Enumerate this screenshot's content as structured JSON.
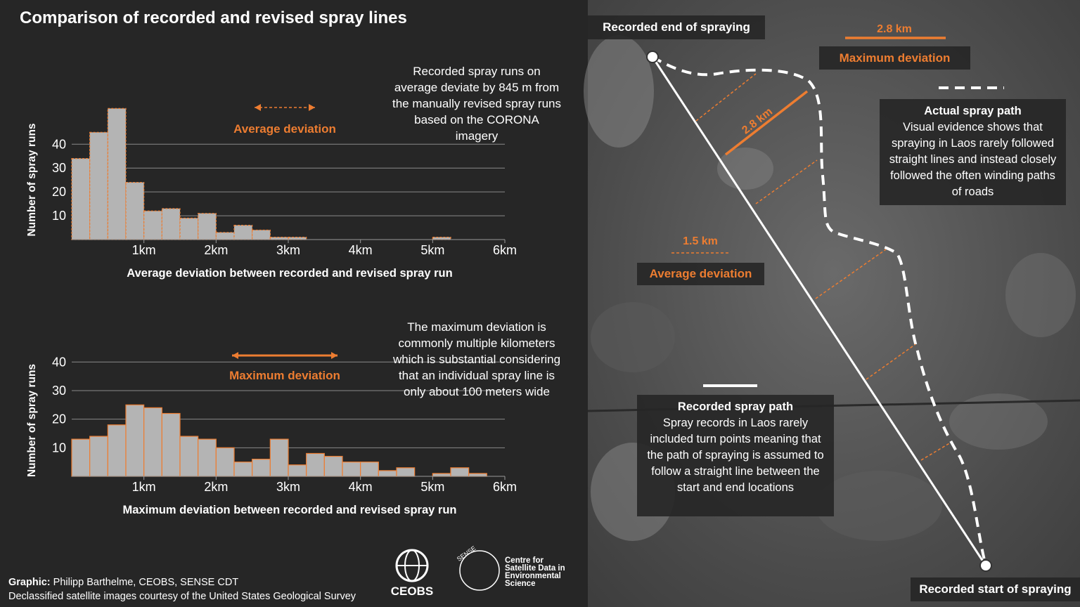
{
  "title": "Comparison of recorded and revised spray lines",
  "chart_data": [
    {
      "type": "histogram",
      "y_label": "Number of spray runs",
      "x_label": "Average deviation between recorded and revised spray run",
      "bins": [
        0,
        0.25,
        0.5,
        0.75,
        1,
        1.25,
        1.5,
        1.75,
        2,
        2.25,
        2.5,
        2.75,
        3,
        3.25,
        3.5,
        3.75,
        4,
        4.25,
        4.5,
        4.75,
        5,
        5.25,
        5.5,
        5.75
      ],
      "values": [
        34,
        45,
        55,
        24,
        12,
        13,
        9,
        11,
        3,
        6,
        4,
        1,
        1,
        0,
        0,
        0,
        0,
        0,
        0,
        0,
        1,
        0,
        0
      ],
      "color": "#b4b4b4",
      "edge_color": "#ed7d31",
      "edge_style": "dashed",
      "xlim": [
        0,
        6
      ],
      "xticks": [
        {
          "value": 1,
          "label": "1km"
        },
        {
          "value": 2,
          "label": "2km"
        },
        {
          "value": 3,
          "label": "3km"
        },
        {
          "value": 4,
          "label": "4km"
        },
        {
          "value": 5,
          "label": "5km"
        },
        {
          "value": 6,
          "label": "6km"
        }
      ],
      "ylim": [
        0,
        56
      ],
      "yticks": [
        10,
        20,
        30,
        40
      ],
      "grid": true,
      "arrow_label": "Average deviation",
      "note": "Recorded spray runs on average deviate by 845 m from the manually revised spray runs based on the CORONA imagery"
    },
    {
      "type": "histogram",
      "y_label": "Number of spray runs",
      "x_label": "Maximum deviation between recorded and revised spray run",
      "bins": [
        0,
        0.25,
        0.5,
        0.75,
        1,
        1.25,
        1.5,
        1.75,
        2,
        2.25,
        2.5,
        2.75,
        3,
        3.25,
        3.5,
        3.75,
        4,
        4.25,
        4.5,
        4.75,
        5,
        5.25,
        5.5,
        5.75
      ],
      "values": [
        13,
        14,
        18,
        25,
        24,
        22,
        14,
        13,
        10,
        5,
        6,
        13,
        4,
        8,
        7,
        5,
        5,
        2,
        3,
        0,
        1,
        3,
        1
      ],
      "color": "#b4b4b4",
      "edge_color": "#ed7d31",
      "edge_style": "solid",
      "xlim": [
        0,
        6
      ],
      "xticks": [
        {
          "value": 1,
          "label": "1km"
        },
        {
          "value": 2,
          "label": "2km"
        },
        {
          "value": 3,
          "label": "3km"
        },
        {
          "value": 4,
          "label": "4km"
        },
        {
          "value": 5,
          "label": "5km"
        },
        {
          "value": 6,
          "label": "6km"
        }
      ],
      "ylim": [
        0,
        44
      ],
      "yticks": [
        10,
        20,
        30,
        40
      ],
      "grid": true,
      "arrow_label": "Maximum deviation",
      "note": "The maximum deviation is commonly multiple kilometers which is substantial considering that an individual spray line is only about 100 meters wide"
    }
  ],
  "map": {
    "end_label": "Recorded end of spraying",
    "max_distance": "2.8 km",
    "max_label": "Maximum deviation",
    "arrow_distance": "2.8 km",
    "actual_title": "Actual spray path",
    "actual_text": "Visual evidence shows that spraying in Laos rarely followed straight lines and instead closely followed the often winding paths of roads",
    "avg_distance": "1.5 km",
    "avg_label": "Average deviation",
    "recorded_title": "Recorded spray path",
    "recorded_text": "Spray records in Laos rarely included turn points meaning that the path of spraying is assumed to follow a straight line between the start and end locations",
    "start_label": "Recorded start of spraying"
  },
  "footer": {
    "credit_label": "Graphic:",
    "credit": "Philipp Barthelme, CEOBS, SENSE CDT",
    "source": "Declassified satellite images courtesy of the United States Geological Survey",
    "logo_ceobs": "CEOBS",
    "logo_sense": "SENSE",
    "logo_centre": "Centre for Satellite Data in Environmental Science"
  }
}
